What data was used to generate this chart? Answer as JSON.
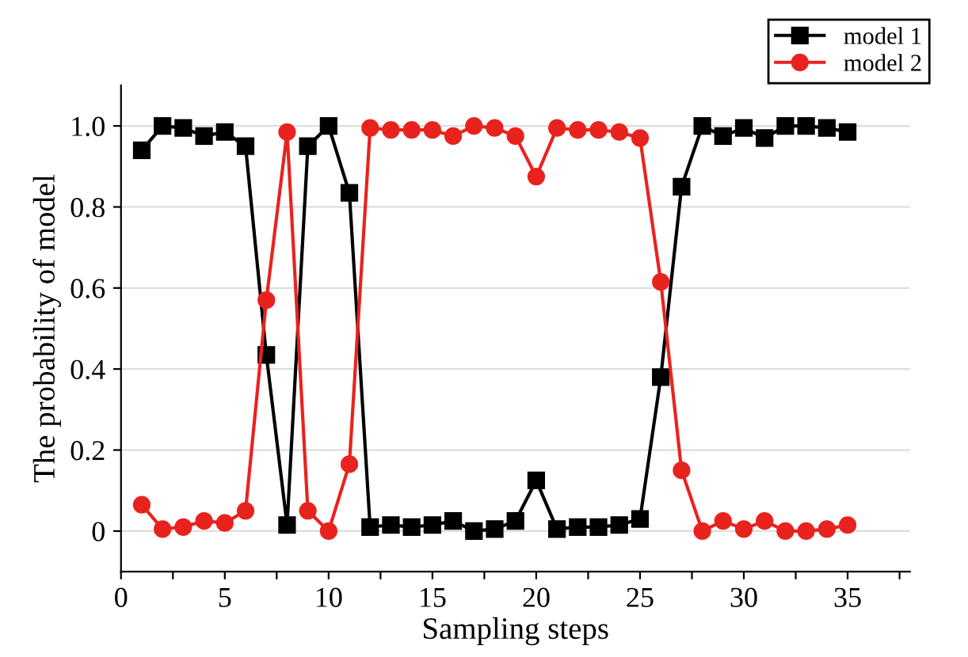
{
  "chart_data": {
    "type": "line",
    "xlabel": "Sampling steps",
    "ylabel": "The probability of model",
    "x": [
      1,
      2,
      3,
      4,
      5,
      6,
      7,
      8,
      9,
      10,
      11,
      12,
      13,
      14,
      15,
      16,
      17,
      18,
      19,
      20,
      21,
      22,
      23,
      24,
      25,
      26,
      27,
      28,
      29,
      30,
      31,
      32,
      33,
      34,
      35
    ],
    "series": [
      {
        "name": "model 1",
        "color": "#000000",
        "marker": "square",
        "values": [
          0.94,
          1.0,
          0.995,
          0.975,
          0.985,
          0.95,
          0.435,
          0.015,
          0.95,
          1.0,
          0.835,
          0.01,
          0.015,
          0.01,
          0.015,
          0.025,
          0.0,
          0.005,
          0.025,
          0.125,
          0.005,
          0.01,
          0.01,
          0.015,
          0.03,
          0.38,
          0.85,
          1.0,
          0.975,
          0.995,
          0.97,
          1.0,
          1.0,
          0.995,
          0.985
        ]
      },
      {
        "name": "model 2",
        "color": "#e8231e",
        "marker": "circle",
        "values": [
          0.065,
          0.005,
          0.01,
          0.025,
          0.02,
          0.05,
          0.57,
          0.985,
          0.05,
          0.0,
          0.165,
          0.995,
          0.99,
          0.99,
          0.99,
          0.975,
          1.0,
          0.995,
          0.975,
          0.875,
          0.995,
          0.99,
          0.99,
          0.985,
          0.97,
          0.615,
          0.15,
          0.0,
          0.025,
          0.005,
          0.025,
          0.0,
          0.0,
          0.005,
          0.015
        ]
      }
    ],
    "xlim": [
      0,
      38
    ],
    "xticks": [
      0,
      {
        "value": 2.5,
        "label": null
      },
      5,
      {
        "value": 7.5,
        "label": null
      },
      10,
      {
        "value": 12.5,
        "label": null
      },
      15,
      {
        "value": 17.5,
        "label": null
      },
      20,
      {
        "value": 22.5,
        "label": null
      },
      25,
      {
        "value": 27.5,
        "label": null
      },
      30,
      {
        "value": 32.5,
        "label": null
      },
      35,
      {
        "value": 37.5,
        "label": null
      }
    ],
    "ylim": [
      -0.1,
      1.1
    ],
    "yticks": [
      {
        "value": 0,
        "label": "0"
      },
      {
        "value": 0.2,
        "label": "0.2"
      },
      {
        "value": 0.4,
        "label": "0.4"
      },
      {
        "value": 0.6,
        "label": "0.6"
      },
      {
        "value": 0.8,
        "label": "0.8"
      },
      {
        "value": 1.0,
        "label": "1.0"
      }
    ],
    "grid": "y",
    "legend": "top right",
    "line_style": "solid"
  }
}
